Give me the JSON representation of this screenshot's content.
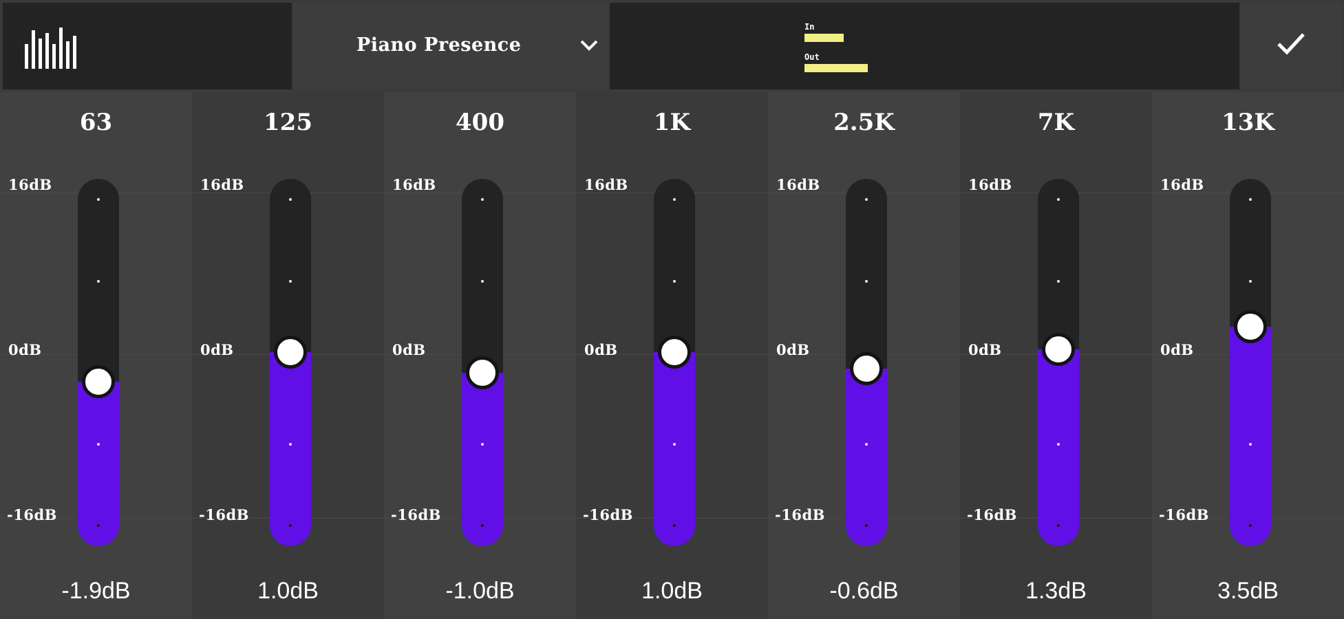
{
  "header": {
    "logo_icon": "equalizer-bars-icon",
    "preset_name": "Piano Presence",
    "preset_dropdown_icon": "chevron-down-icon",
    "meter": {
      "in_label": "In",
      "out_label": "Out",
      "in_level": 0.062,
      "out_level": 0.1
    },
    "confirm_icon": "checkmark-icon"
  },
  "scale": {
    "max": "16dB",
    "zero": "0dB",
    "min": "-16dB"
  },
  "bands": [
    {
      "freq": "63",
      "value": "-1.9dB"
    },
    {
      "freq": "125",
      "value": "1.0dB"
    },
    {
      "freq": "400",
      "value": "-1.0dB"
    },
    {
      "freq": "1K",
      "value": "1.0dB"
    },
    {
      "freq": "2.5K",
      "value": "-0.6dB"
    },
    {
      "freq": "7K",
      "value": "1.3dB"
    },
    {
      "freq": "13K",
      "value": "3.5dB"
    }
  ],
  "colors": {
    "accent": "#6010e6",
    "meter": "#f3ef86",
    "panel": "#232323"
  }
}
